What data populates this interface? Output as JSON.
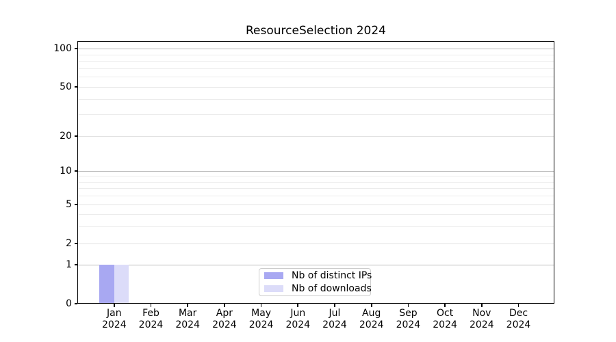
{
  "chart_data": {
    "type": "bar",
    "title": "ResourceSelection 2024",
    "categories": [
      "Jan 2024",
      "Feb 2024",
      "Mar 2024",
      "Apr 2024",
      "May 2024",
      "Jun 2024",
      "Jul 2024",
      "Aug 2024",
      "Sep 2024",
      "Oct 2024",
      "Nov 2024",
      "Dec 2024"
    ],
    "x_tick_months": [
      "Jan",
      "Feb",
      "Mar",
      "Apr",
      "May",
      "Jun",
      "Jul",
      "Aug",
      "Sep",
      "Oct",
      "Nov",
      "Dec"
    ],
    "x_tick_year": "2024",
    "series": [
      {
        "name": "Nb of distinct IPs",
        "color": "#a8a8f2",
        "values": [
          1,
          0,
          0,
          0,
          0,
          0,
          0,
          0,
          0,
          0,
          0,
          0
        ]
      },
      {
        "name": "Nb of downloads",
        "color": "#dcdcf9",
        "values": [
          1,
          0,
          0,
          0,
          0,
          0,
          0,
          0,
          0,
          0,
          0,
          0
        ]
      }
    ],
    "xlabel": "",
    "ylabel": "",
    "yscale": "symlog",
    "y_ticks": [
      0,
      1,
      2,
      5,
      10,
      20,
      50,
      100
    ],
    "y_minor_gridlines": [
      3,
      4,
      6,
      7,
      8,
      9,
      30,
      40,
      60,
      70,
      80,
      90
    ],
    "ylim_labels": [
      0,
      100
    ],
    "grid": true,
    "legend_position": "lower center"
  },
  "colors": {
    "distinct_ips_bar": "#a8a8f2",
    "downloads_bar": "#dcdcf9",
    "grid_decade": "#b9b9b9",
    "grid_labeled": "#e2e2e2",
    "grid_minor": "#ececec",
    "spine": "#000000",
    "legend_border": "#cccccc",
    "background": "#ffffff"
  }
}
